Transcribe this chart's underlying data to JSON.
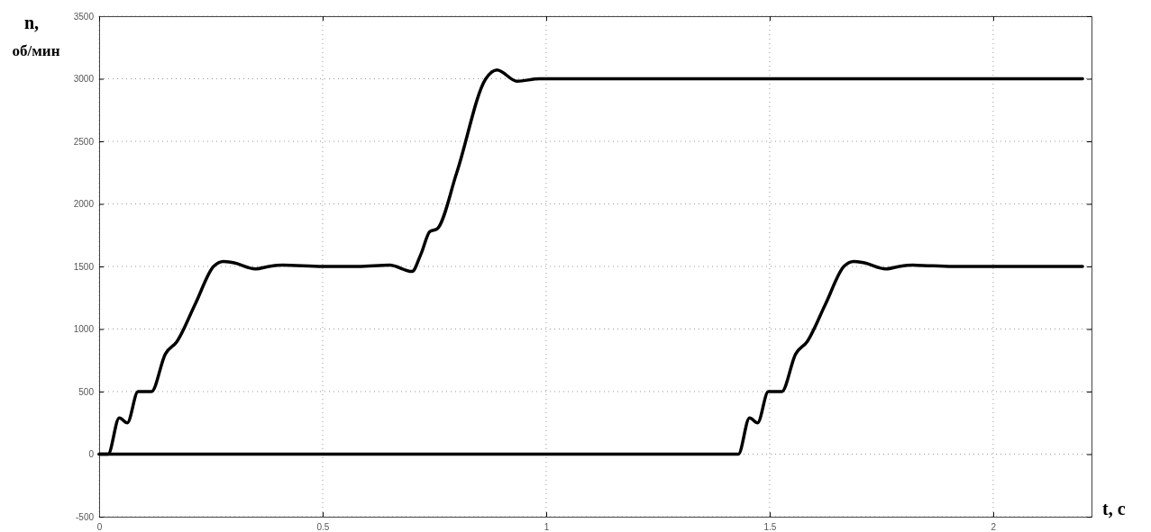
{
  "chart_data": {
    "type": "line",
    "xlabel": "t, c",
    "ylabel": "n, об/мин",
    "xlim": [
      0,
      2.22
    ],
    "ylim": [
      -500,
      3500
    ],
    "xticks": [
      0,
      0.5,
      1,
      1.5,
      2
    ],
    "yticks": [
      -500,
      0,
      500,
      1000,
      1500,
      2000,
      2500,
      3000,
      3500
    ],
    "grid": true,
    "line_style": "solid",
    "marker": "none",
    "series": [
      {
        "color": "#000000",
        "x": [
          0,
          0.02,
          0.045,
          0.063,
          0.087,
          0.117,
          0.148,
          0.174,
          0.215,
          0.256,
          0.278,
          0.3,
          0.35,
          0.38,
          0.41,
          0.5,
          0.58,
          0.65,
          0.7,
          0.72,
          0.74,
          0.756,
          0.8,
          0.865,
          0.89,
          0.935,
          0.985,
          1.1,
          1.2,
          1.3,
          1.4,
          1.5,
          1.6,
          1.7,
          1.8,
          1.9,
          2.0,
          2.1,
          2.2
        ],
        "values": [
          0,
          0,
          290,
          250,
          500,
          500,
          800,
          900,
          1200,
          1500,
          1540,
          1530,
          1480,
          1500,
          1510,
          1500,
          1500,
          1510,
          1460,
          1600,
          1780,
          1800,
          2250,
          3000,
          3070,
          2980,
          3000,
          3000,
          3000,
          3000,
          3000,
          3000,
          3000,
          3000,
          3000,
          3000,
          3000,
          3000,
          3000
        ]
      },
      {
        "color": "#000000",
        "x": [
          0,
          1.43,
          1.455,
          1.473,
          1.497,
          1.527,
          1.558,
          1.584,
          1.625,
          1.666,
          1.688,
          1.71,
          1.76,
          1.79,
          1.82,
          1.91,
          2.0,
          2.1,
          2.2
        ],
        "values": [
          0,
          0,
          290,
          250,
          500,
          500,
          800,
          900,
          1200,
          1500,
          1540,
          1530,
          1480,
          1500,
          1510,
          1500,
          1500,
          1500,
          1500
        ]
      }
    ]
  }
}
